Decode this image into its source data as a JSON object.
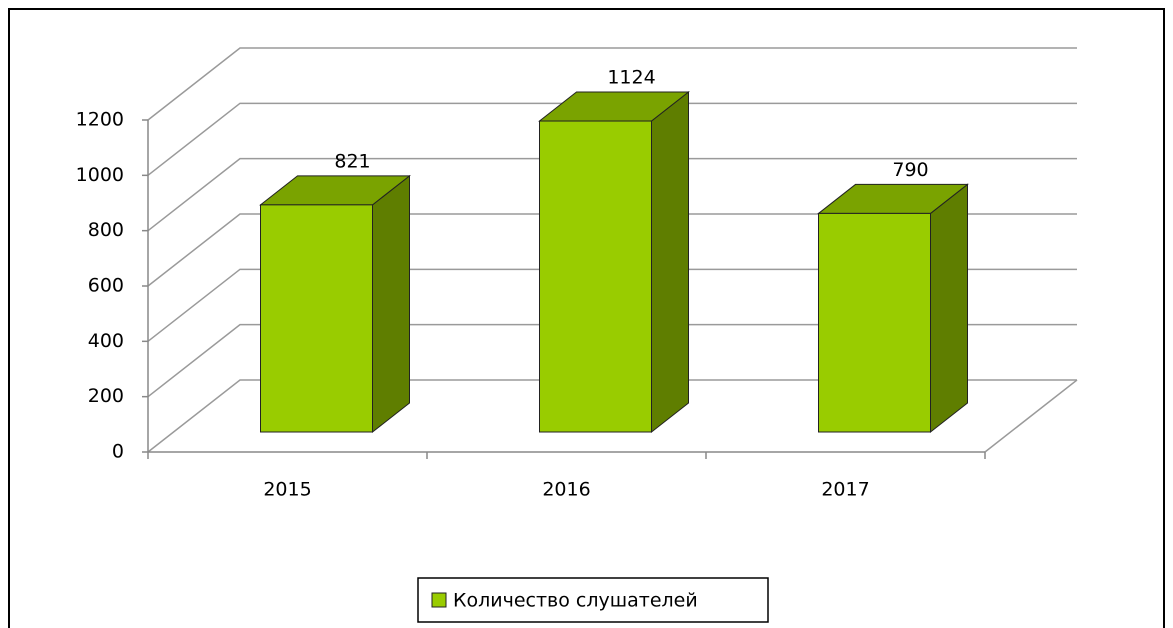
{
  "chart_data": {
    "type": "bar3d",
    "categories": [
      "2015",
      "2016",
      "2017"
    ],
    "series": [
      {
        "name": "Количество слушателей",
        "color": "#99cc00",
        "values": [
          821,
          1124,
          790
        ]
      }
    ],
    "ylim": [
      0,
      1200
    ],
    "yticks": [
      0,
      200,
      400,
      600,
      800,
      1000,
      1200
    ],
    "grid": true,
    "legend": "bottom"
  }
}
